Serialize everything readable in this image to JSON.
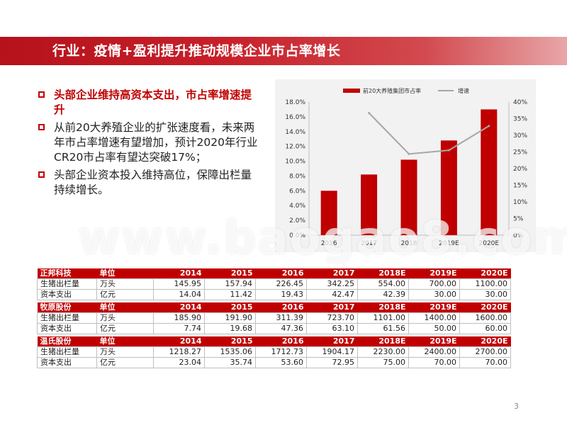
{
  "title": "行业：疫情+盈利提升推动规模企业市占率增长",
  "bullets": [
    "头部企业维持高资本支出，市占率增速提升",
    "从前20大养殖企业的扩张速度看，未来两年市占率增速有望增加，预计2020年行业CR20市占率有望达突破17%；",
    "头部企业资本投入维持高位，保障出栏量持续增长。"
  ],
  "watermark": "www.baogao8.com",
  "chart_data": {
    "type": "bar",
    "categories": [
      "2016",
      "2017",
      "2018",
      "2019E",
      "2020E"
    ],
    "series": [
      {
        "name": "前20大养殖集团市占率",
        "type": "bar",
        "axis": "left",
        "values": [
          6.0,
          8.2,
          10.2,
          12.8,
          17.0
        ]
      },
      {
        "name": "增速",
        "type": "line",
        "axis": "right",
        "values": [
          null,
          36.7,
          24.4,
          25.5,
          32.8
        ]
      }
    ],
    "y_left": {
      "min": 0,
      "max": 18,
      "ticks": [
        "0.0%",
        "2.0%",
        "4.0%",
        "6.0%",
        "8.0%",
        "10.0%",
        "12.0%",
        "14.0%",
        "16.0%",
        "18.0%"
      ]
    },
    "y_right": {
      "min": 0,
      "max": 40,
      "ticks": [
        "0%",
        "5%",
        "10%",
        "15%",
        "20%",
        "25%",
        "30%",
        "35%",
        "40%"
      ]
    },
    "legend": "top",
    "colors": {
      "bar": "#c00000",
      "line": "#a6a6a6"
    }
  },
  "tables": [
    {
      "company": "正邦科技",
      "unit_label": "单位",
      "years": [
        "2014",
        "2015",
        "2016",
        "2017",
        "2018E",
        "2019E",
        "2020E"
      ],
      "rows": [
        {
          "label": "生猪出栏量",
          "unit": "万头",
          "values": [
            "145.95",
            "157.94",
            "226.45",
            "342.25",
            "554.00",
            "700.00",
            "1100.00"
          ]
        },
        {
          "label": "资本支出",
          "unit": "亿元",
          "values": [
            "14.04",
            "11.42",
            "19.43",
            "42.47",
            "42.39",
            "30.00",
            "30.00"
          ]
        }
      ]
    },
    {
      "company": "牧原股份",
      "unit_label": "单位",
      "years": [
        "2014",
        "2015",
        "2016",
        "2017",
        "2018E",
        "2019E",
        "2020E"
      ],
      "rows": [
        {
          "label": "生猪出栏量",
          "unit": "万头",
          "values": [
            "185.90",
            "191.90",
            "311.39",
            "723.70",
            "1101.00",
            "1400.00",
            "1600.00"
          ]
        },
        {
          "label": "资本支出",
          "unit": "亿元",
          "values": [
            "7.74",
            "19.68",
            "47.36",
            "63.10",
            "61.56",
            "50.00",
            "60.00"
          ]
        }
      ]
    },
    {
      "company": "温氏股份",
      "unit_label": "单位",
      "years": [
        "2014",
        "2015",
        "2016",
        "2017",
        "2018E",
        "2019E",
        "2020E"
      ],
      "rows": [
        {
          "label": "生猪出栏量",
          "unit": "万头",
          "values": [
            "1218.27",
            "1535.06",
            "1712.73",
            "1904.17",
            "2230.00",
            "2400.00",
            "2700.00"
          ]
        },
        {
          "label": "资本支出",
          "unit": "亿元",
          "values": [
            "23.04",
            "35.74",
            "53.60",
            "72.95",
            "75.00",
            "70.00",
            "70.00"
          ]
        }
      ]
    }
  ],
  "page_number": "3"
}
